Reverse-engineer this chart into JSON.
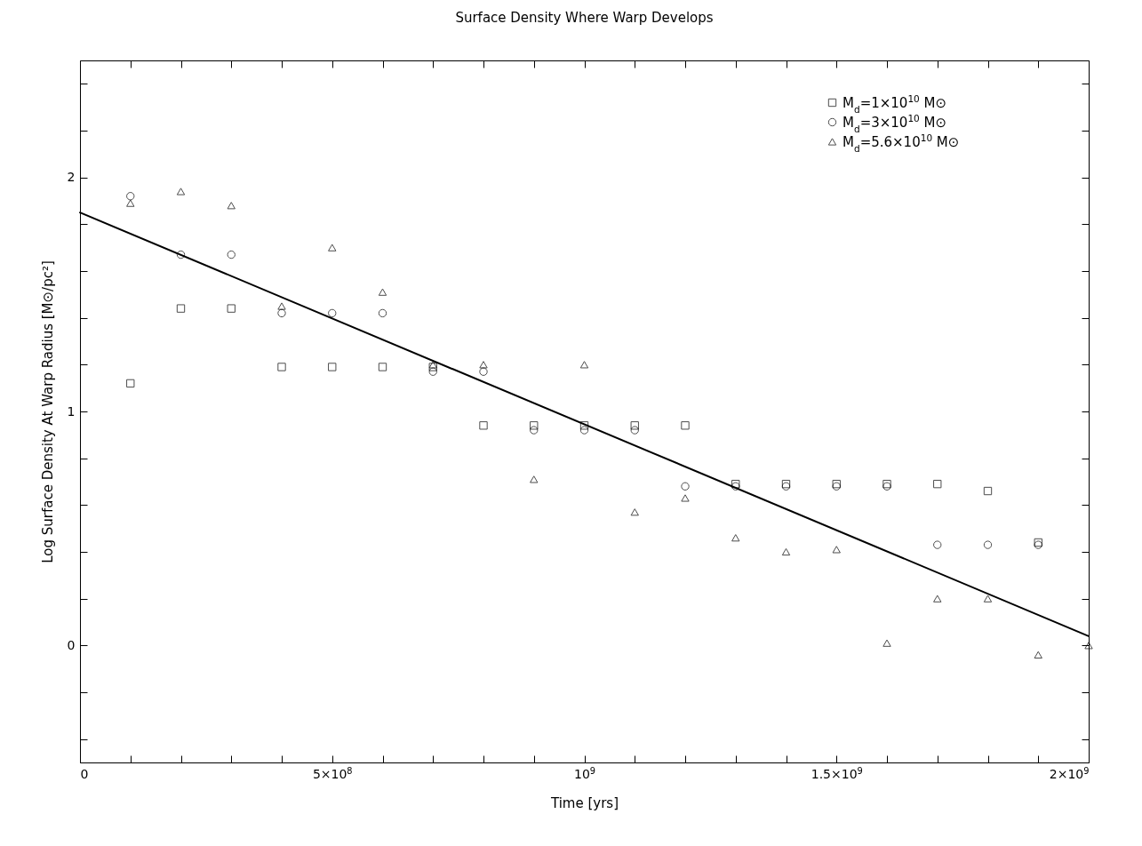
{
  "chart_data": {
    "type": "scatter",
    "title": "Surface Density Where Warp Develops",
    "xlabel": "Time [yrs]",
    "ylabel": "Log Surface Density At Warp Radius [M⊙/pc²]",
    "x": [
      100000000.0,
      200000000.0,
      300000000.0,
      400000000.0,
      500000000.0,
      600000000.0,
      700000000.0,
      800000000.0,
      900000000.0,
      1000000000.0,
      1100000000.0,
      1200000000.0,
      1300000000.0,
      1400000000.0,
      1500000000.0,
      1600000000.0,
      1700000000.0,
      1800000000.0,
      1900000000.0,
      2000000000.0
    ],
    "series": [
      {
        "name": "M$_{d}$=1×10$^{10}$ M⊙",
        "color": "#000000",
        "marker": "square",
        "values": [
          1.12,
          1.44,
          1.44,
          1.19,
          1.19,
          1.19,
          1.19,
          0.94,
          0.94,
          0.94,
          0.94,
          0.94,
          0.69,
          0.69,
          0.69,
          0.69,
          0.69,
          0.66,
          0.44,
          null
        ]
      },
      {
        "name": "M$_{d}$=3×10$^{10}$ M⊙",
        "color": "#000000",
        "marker": "circle",
        "values": [
          1.92,
          1.67,
          1.67,
          1.42,
          1.42,
          1.42,
          1.17,
          1.17,
          0.92,
          0.92,
          0.92,
          0.68,
          0.68,
          0.68,
          0.68,
          0.68,
          0.43,
          0.43,
          0.43,
          null
        ]
      },
      {
        "name": "M$_{d}$=5.6×10$^{10}$ M⊙",
        "color": "#000000",
        "marker": "triangle",
        "values": [
          1.89,
          1.94,
          1.88,
          1.45,
          1.7,
          1.51,
          1.2,
          1.2,
          0.71,
          1.2,
          0.57,
          0.63,
          0.46,
          0.4,
          0.41,
          0.01,
          0.2,
          0.2,
          -0.04,
          0
        ]
      },
      {
        "type": "line",
        "color": "#000000",
        "line_style": "solid",
        "x": [
          0,
          2000000000.0
        ],
        "values": [
          1.85,
          0.04
        ]
      }
    ],
    "xlim": [
      0,
      2000000000.0
    ],
    "ylim": [
      -0.5,
      2.5
    ],
    "xticks": [
      0,
      {
        "value": 100000000.0,
        "label": null
      },
      {
        "value": 200000000.0,
        "label": null
      },
      {
        "value": 300000000.0,
        "label": null
      },
      {
        "value": 400000000.0,
        "label": null
      },
      {
        "value": 500000000.0,
        "label": "5×10$^{8}$"
      },
      {
        "value": 600000000.0,
        "label": null
      },
      {
        "value": 700000000.0,
        "label": null
      },
      {
        "value": 800000000.0,
        "label": null
      },
      {
        "value": 900000000.0,
        "label": null
      },
      {
        "value": 1000000000.0,
        "label": "10$^{9}$"
      },
      {
        "value": 1100000000.0,
        "label": null
      },
      {
        "value": 1200000000.0,
        "label": null
      },
      {
        "value": 1300000000.0,
        "label": null
      },
      {
        "value": 1400000000.0,
        "label": null
      },
      {
        "value": 1500000000.0,
        "label": "1.5×10$^{9}$"
      },
      {
        "value": 1600000000.0,
        "label": null
      },
      {
        "value": 1700000000.0,
        "label": null
      },
      {
        "value": 1800000000.0,
        "label": null
      },
      {
        "value": 1900000000.0,
        "label": null
      },
      {
        "value": 2000000000.0,
        "label": "2×10$^{9}$"
      }
    ],
    "yticks": [
      {
        "value": -0.4,
        "label": null
      },
      {
        "value": -0.2,
        "label": null
      },
      0,
      {
        "value": 0.2,
        "label": null
      },
      {
        "value": 0.4,
        "label": null
      },
      {
        "value": 0.6,
        "label": null
      },
      {
        "value": 0.8,
        "label": null
      },
      1,
      {
        "value": 1.2,
        "label": null
      },
      {
        "value": 1.4,
        "label": null
      },
      {
        "value": 1.6,
        "label": null
      },
      {
        "value": 1.8,
        "label": null
      },
      2,
      {
        "value": 2.2,
        "label": null
      },
      {
        "value": 2.4,
        "label": null
      }
    ],
    "grid": false,
    "legend": "top right"
  }
}
